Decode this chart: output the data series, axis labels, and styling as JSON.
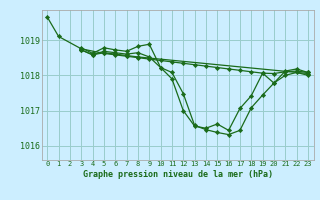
{
  "bg_color": "#cceeff",
  "grid_color": "#99cccc",
  "line_color": "#1a6b1a",
  "marker_color": "#1a6b1a",
  "xlabel": "Graphe pression niveau de la mer (hPa)",
  "ylabel_ticks": [
    1016,
    1017,
    1018,
    1019
  ],
  "xlim": [
    -0.5,
    23.5
  ],
  "ylim": [
    1015.6,
    1019.85
  ],
  "series": [
    {
      "x": [
        0,
        1,
        3,
        5,
        6,
        7,
        8,
        9,
        10,
        11,
        12,
        13,
        14,
        15,
        16,
        17,
        18,
        19,
        20,
        21,
        22,
        23
      ],
      "y": [
        1019.65,
        1019.1,
        1018.75,
        1018.62,
        1018.58,
        1018.54,
        1018.5,
        1018.46,
        1018.42,
        1018.38,
        1018.34,
        1018.3,
        1018.26,
        1018.22,
        1018.18,
        1018.14,
        1018.1,
        1018.06,
        1018.05,
        1018.1,
        1018.12,
        1018.08
      ]
    },
    {
      "x": [
        3,
        4,
        5,
        6,
        7,
        8,
        9,
        10,
        11,
        12,
        13,
        14,
        15,
        16,
        17,
        18,
        19,
        20,
        21,
        22,
        23
      ],
      "y": [
        1018.78,
        1018.62,
        1018.78,
        1018.72,
        1018.68,
        1018.82,
        1018.88,
        1018.22,
        1017.9,
        1017.0,
        1016.56,
        1016.5,
        1016.62,
        1016.44,
        1017.06,
        1017.42,
        1018.06,
        1017.78,
        1018.12,
        1018.18,
        1018.08
      ]
    },
    {
      "x": [
        3,
        4,
        5,
        6,
        7,
        8,
        9,
        10,
        11,
        12,
        13,
        14,
        15,
        16,
        17,
        18,
        19,
        20,
        21,
        22,
        23
      ],
      "y": [
        1018.72,
        1018.58,
        1018.68,
        1018.64,
        1018.6,
        1018.64,
        1018.52,
        1018.22,
        1018.08,
        1017.48,
        1016.58,
        1016.46,
        1016.38,
        1016.32,
        1016.44,
        1017.08,
        1017.44,
        1017.78,
        1018.0,
        1018.08,
        1018.0
      ]
    },
    {
      "x": [
        3,
        4,
        5,
        6,
        7,
        8,
        23
      ],
      "y": [
        1018.72,
        1018.58,
        1018.64,
        1018.6,
        1018.56,
        1018.52,
        1018.05
      ]
    }
  ],
  "xticks": [
    0,
    1,
    2,
    3,
    4,
    5,
    6,
    7,
    8,
    9,
    10,
    11,
    12,
    13,
    14,
    15,
    16,
    17,
    18,
    19,
    20,
    21,
    22,
    23
  ],
  "figsize": [
    3.2,
    2.0
  ],
  "dpi": 100
}
